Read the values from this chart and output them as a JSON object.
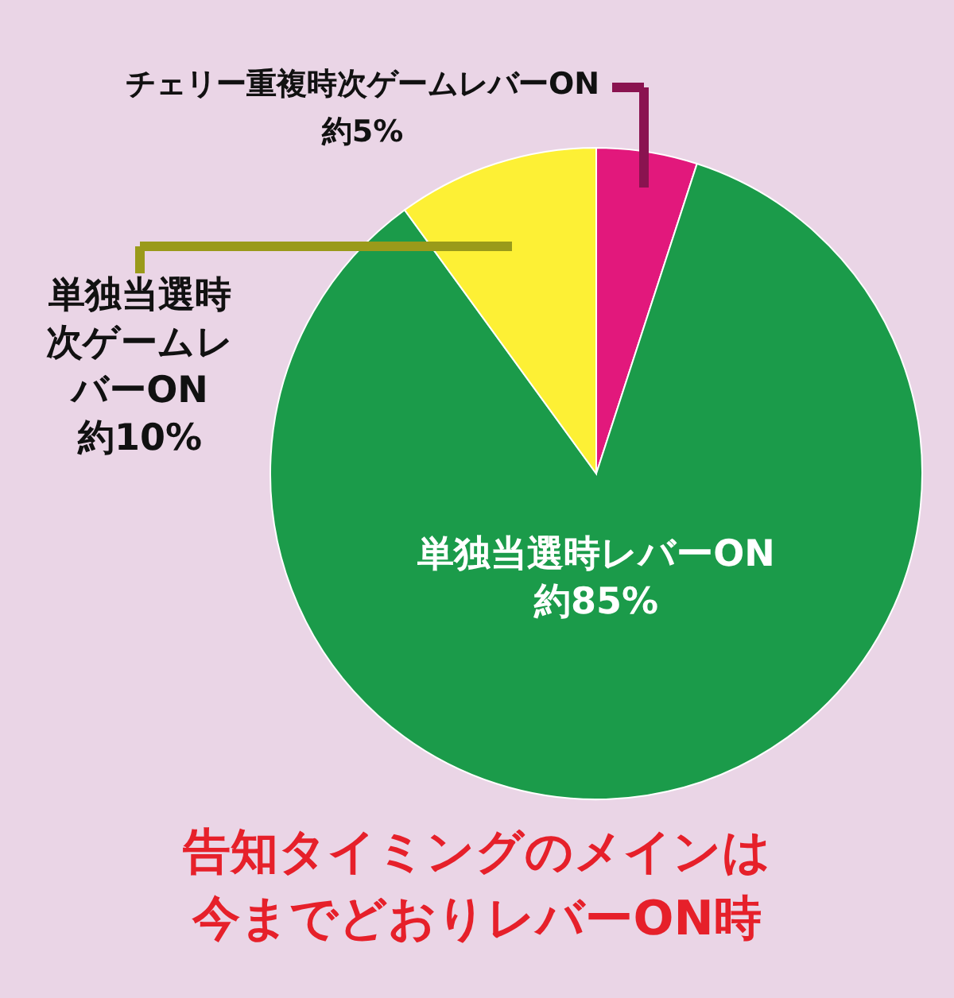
{
  "chart_data": {
    "type": "pie",
    "categories": [
      "チェリー重複時次ゲームレバーON",
      "単独当選時レバーON",
      "単独当選時次ゲームレバーON"
    ],
    "values": [
      5,
      85,
      10
    ],
    "colors": [
      "#e2187c",
      "#1b9b4a",
      "#fdf035"
    ],
    "value_labels": [
      "約5%",
      "約85%",
      "約10%"
    ],
    "annotations": [
      "告知タイミングのメインは今までどおりレバーON時"
    ]
  }
}
